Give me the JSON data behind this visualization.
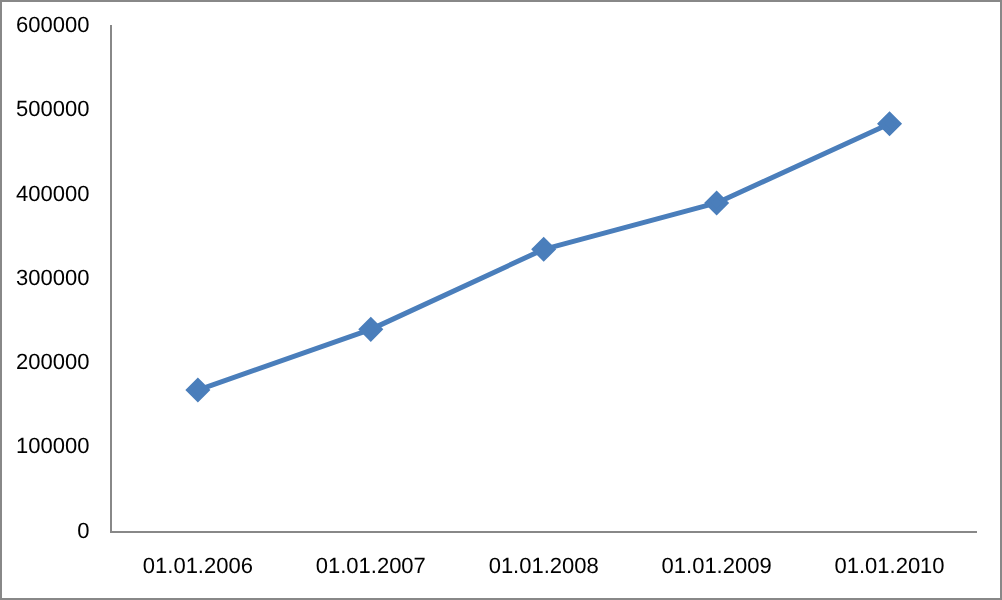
{
  "chart_data": {
    "type": "line",
    "categories": [
      "01.01.2006",
      "01.01.2007",
      "01.01.2008",
      "01.01.2009",
      "01.01.2010"
    ],
    "series": [
      {
        "color": "#4a7ebb",
        "values": [
          168000,
          240000,
          335000,
          390000,
          484000
        ]
      }
    ],
    "ylim": [
      0,
      600000
    ],
    "yticks": [
      0,
      100000,
      200000,
      300000,
      400000,
      500000,
      600000
    ],
    "grid": false,
    "legend": false,
    "marker": "diamond",
    "line_style": "solid"
  }
}
